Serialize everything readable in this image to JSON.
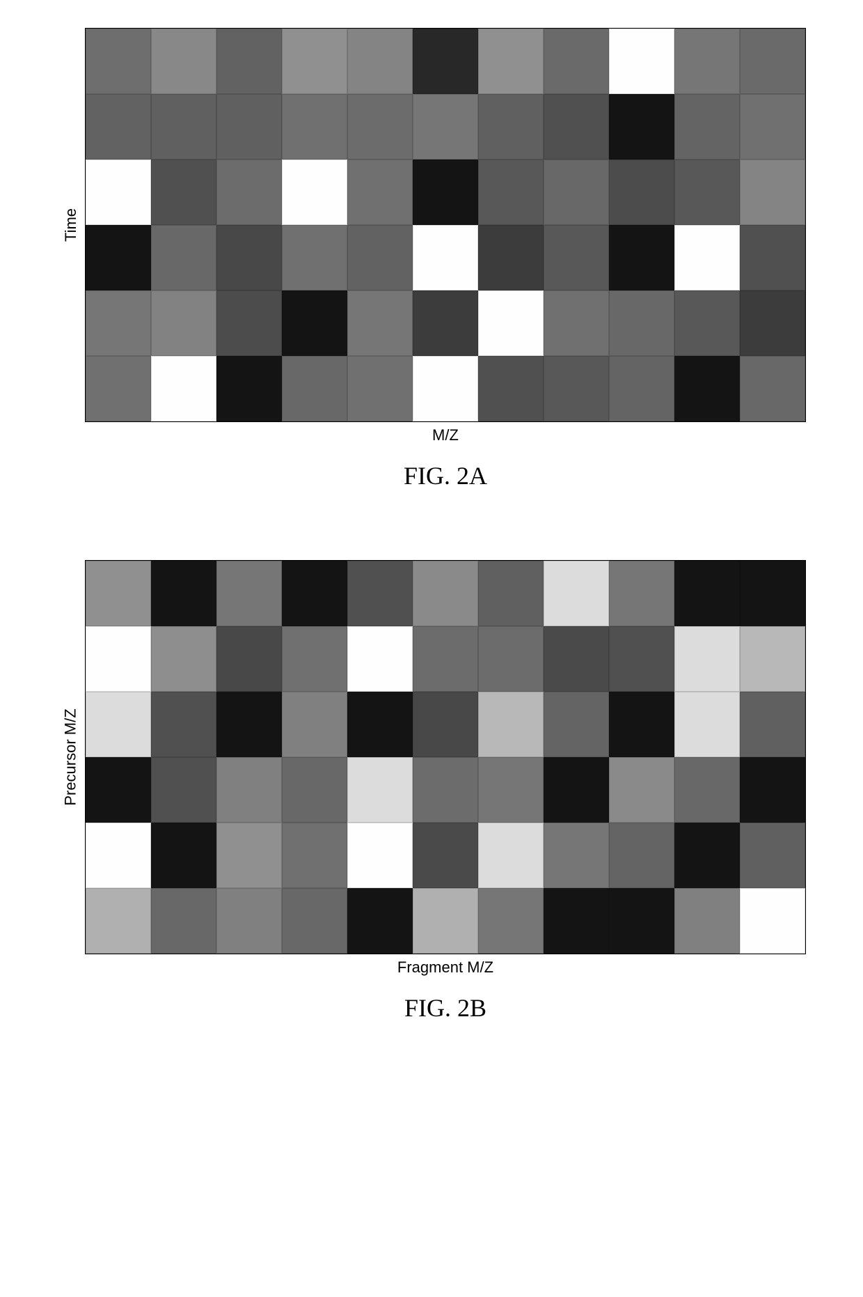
{
  "figures": {
    "a": {
      "type": "heatmap",
      "rows": 6,
      "cols": 11,
      "ylabel": "Time",
      "xlabel": "M/Z",
      "caption": "FIG. 2A",
      "background_color": "#ffffff",
      "border_color": "#000000",
      "label_fontsize": 22,
      "caption_fontsize": 36,
      "cell_colors": [
        [
          "#6e6e6e",
          "#888888",
          "#626262",
          "#909090",
          "#848484",
          "#282828",
          "#909090",
          "#6a6a6a",
          "#fefefe",
          "#767676",
          "#6a6a6a"
        ],
        [
          "#626262",
          "#606060",
          "#606060",
          "#707070",
          "#6c6c6c",
          "#767676",
          "#606060",
          "#505050",
          "#141414",
          "#646464",
          "#707070"
        ],
        [
          "#fefefe",
          "#505050",
          "#6c6c6c",
          "#fefefe",
          "#707070",
          "#141414",
          "#585858",
          "#686868",
          "#4c4c4c",
          "#585858",
          "#848484"
        ],
        [
          "#141414",
          "#686868",
          "#484848",
          "#707070",
          "#626262",
          "#fefefe",
          "#3c3c3c",
          "#585858",
          "#141414",
          "#fefefe",
          "#505050"
        ],
        [
          "#767676",
          "#828282",
          "#4c4c4c",
          "#141414",
          "#767676",
          "#3c3c3c",
          "#fefefe",
          "#707070",
          "#686868",
          "#585858",
          "#3c3c3c"
        ],
        [
          "#707070",
          "#fefefe",
          "#141414",
          "#686868",
          "#707070",
          "#fefefe",
          "#505050",
          "#585858",
          "#646464",
          "#141414",
          "#686868"
        ]
      ]
    },
    "b": {
      "type": "heatmap",
      "rows": 6,
      "cols": 11,
      "ylabel": "Precursor M/Z",
      "xlabel": "Fragment M/Z",
      "caption": "FIG. 2B",
      "background_color": "#ffffff",
      "border_color": "#000000",
      "label_fontsize": 22,
      "caption_fontsize": 36,
      "cell_colors": [
        [
          "#909090",
          "#141414",
          "#767676",
          "#141414",
          "#505050",
          "#8a8a8a",
          "#606060",
          "#dcdcdc",
          "#767676",
          "#141414",
          "#141414"
        ],
        [
          "#fefefe",
          "#8e8e8e",
          "#484848",
          "#707070",
          "#fefefe",
          "#6c6c6c",
          "#6c6c6c",
          "#4a4a4a",
          "#505050",
          "#dcdcdc",
          "#b8b8b8"
        ],
        [
          "#dcdcdc",
          "#505050",
          "#141414",
          "#808080",
          "#141414",
          "#484848",
          "#b8b8b8",
          "#646464",
          "#141414",
          "#dcdcdc",
          "#606060"
        ],
        [
          "#141414",
          "#505050",
          "#808080",
          "#686868",
          "#dcdcdc",
          "#6c6c6c",
          "#767676",
          "#141414",
          "#8a8a8a",
          "#686868",
          "#141414"
        ],
        [
          "#fefefe",
          "#141414",
          "#909090",
          "#707070",
          "#fefefe",
          "#4a4a4a",
          "#dcdcdc",
          "#767676",
          "#646464",
          "#141414",
          "#606060"
        ],
        [
          "#b0b0b0",
          "#686868",
          "#808080",
          "#686868",
          "#141414",
          "#b0b0b0",
          "#767676",
          "#141414",
          "#141414",
          "#808080",
          "#fefefe"
        ]
      ]
    }
  }
}
